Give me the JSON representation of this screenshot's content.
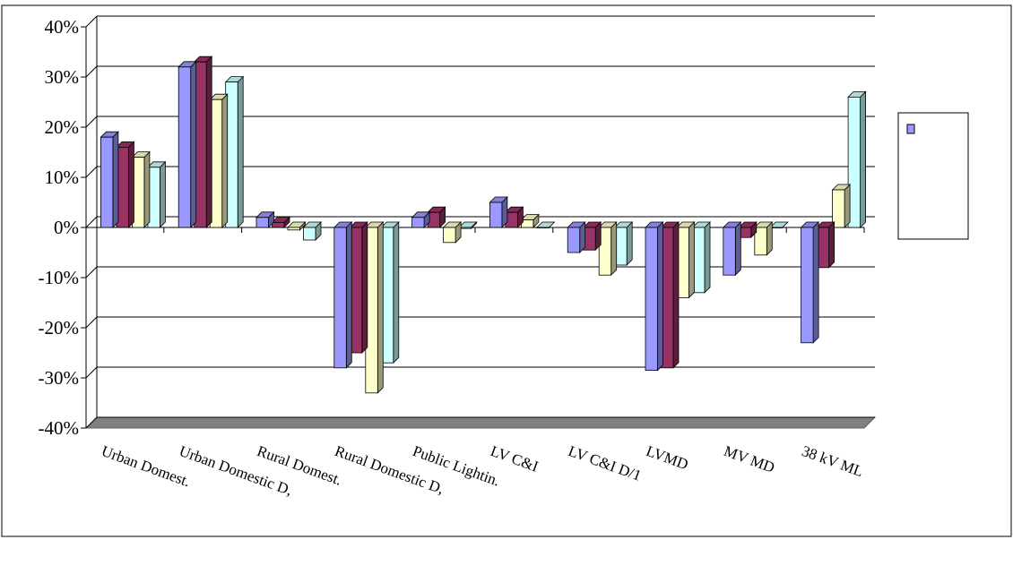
{
  "chart_data": {
    "type": "bar",
    "title": "",
    "xlabel": "",
    "ylabel": "",
    "ylim": [
      -40,
      40
    ],
    "yticks": [
      "40%",
      "30%",
      "20%",
      "10%",
      "0%",
      "-10%",
      "-20%",
      "-30%",
      "-40%"
    ],
    "grid": true,
    "legend": "right",
    "categories": [
      "Urban Domest.",
      "Urban Domestic D,",
      "Rural Domest.",
      "Rural Domestic D,",
      "Public Lightin.",
      "LV C&I",
      "LV C&I D/1",
      "LVMD",
      "MV MD",
      "38 kV ML"
    ],
    "series": [
      {
        "name": "",
        "color": "#9999ff",
        "values": [
          18,
          32,
          2,
          -28,
          2,
          5,
          -5,
          -28.5,
          -9.5,
          -23
        ]
      },
      {
        "name": "",
        "color": "#993366",
        "values": [
          16,
          33,
          1,
          -25,
          3,
          3,
          -4.5,
          -28,
          -2,
          -8
        ]
      },
      {
        "name": "",
        "color": "#ffffcc",
        "values": [
          14,
          25.5,
          -0.5,
          -33,
          -3,
          1.5,
          -9.5,
          -14,
          -5.5,
          7.5
        ]
      },
      {
        "name": "",
        "color": "#ccffff",
        "values": [
          12,
          29,
          -2.5,
          -27,
          -0.2,
          0,
          -7.5,
          -13,
          0,
          26
        ]
      }
    ]
  }
}
